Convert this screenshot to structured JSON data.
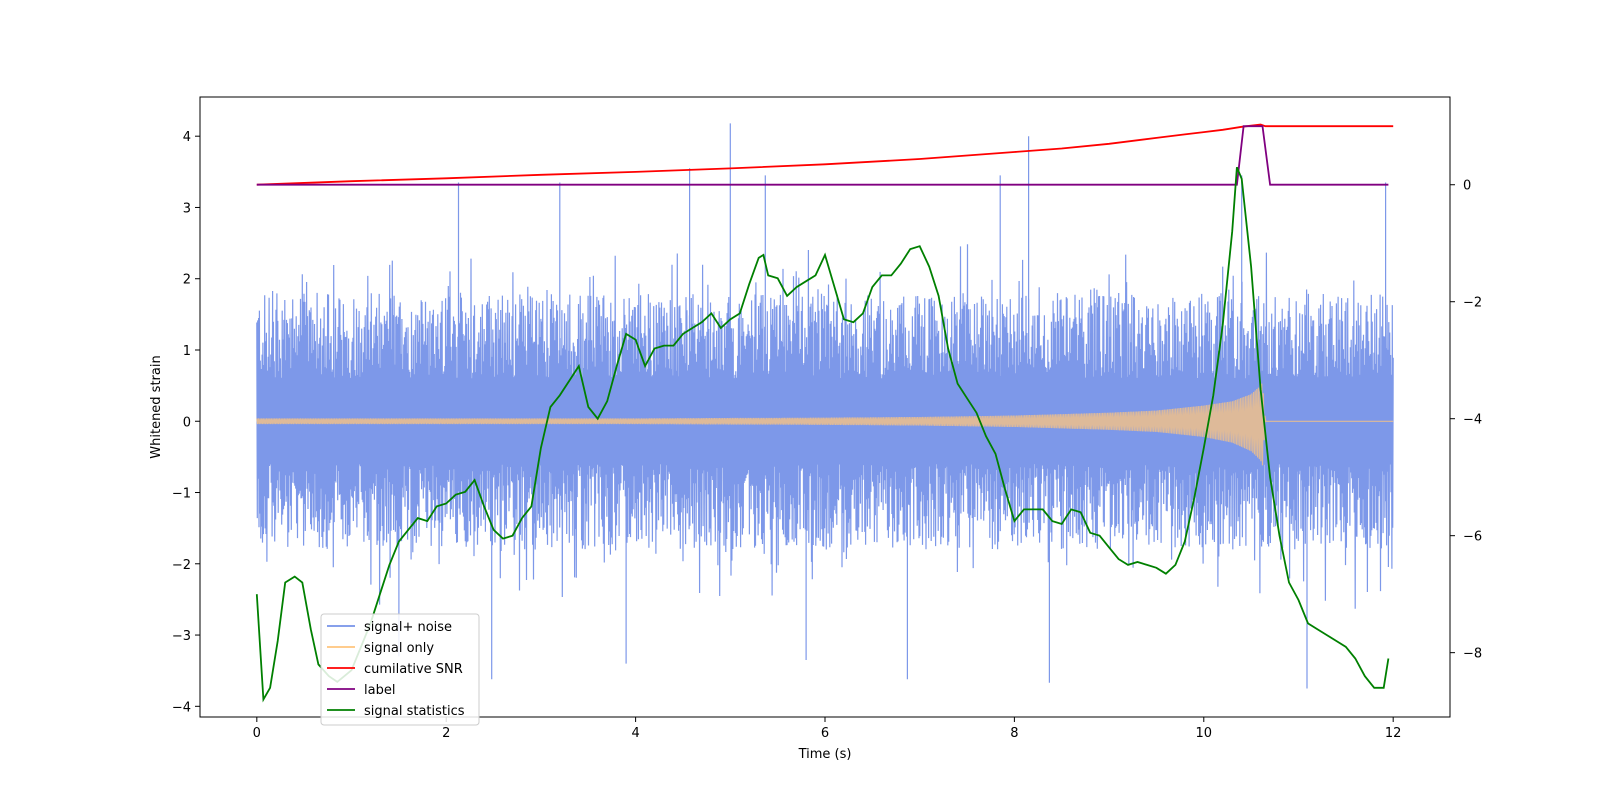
{
  "chart_data": {
    "type": "line",
    "xlabel": "Time (s)",
    "ylabel": "Whitened strain",
    "xlim": [
      -0.6,
      12.6
    ],
    "ylim": [
      -4.15,
      4.55
    ],
    "y2lim": [
      -9.1,
      1.5
    ],
    "xticks": [
      0,
      2,
      4,
      6,
      8,
      10,
      12
    ],
    "xtick_labels": [
      "0",
      "2",
      "4",
      "6",
      "8",
      "10",
      "12"
    ],
    "yticks": [
      -4,
      -3,
      -2,
      -1,
      0,
      1,
      2,
      3,
      4
    ],
    "ytick_labels": [
      "−4",
      "−3",
      "−2",
      "−1",
      "0",
      "1",
      "2",
      "3",
      "4"
    ],
    "y2ticks": [
      -8,
      -6,
      -4,
      -2,
      0
    ],
    "y2tick_labels": [
      "−8",
      "−6",
      "−4",
      "−2",
      "0"
    ],
    "grid": false,
    "legend_position": "lower-left",
    "series": [
      {
        "name": "signal+ noise",
        "axis": "left",
        "color": "#7692e8",
        "kind": "noise-envelope",
        "x_range": [
          0,
          12
        ],
        "upper_typical": 2.0,
        "lower_typical": -2.0,
        "peaks": [
          [
            4.57,
            3.55
          ],
          [
            5.0,
            4.18
          ],
          [
            5.37,
            3.45
          ],
          [
            8.15,
            4.0
          ],
          [
            7.85,
            3.45
          ],
          [
            2.13,
            3.35
          ],
          [
            3.2,
            3.35
          ],
          [
            11.92,
            3.35
          ],
          [
            10.4,
            3.45
          ],
          [
            11.09,
            -3.75
          ],
          [
            2.48,
            -3.62
          ],
          [
            8.37,
            -3.67
          ],
          [
            6.87,
            -3.62
          ],
          [
            3.9,
            -3.4
          ],
          [
            5.8,
            -3.35
          ],
          [
            1.5,
            -3.3
          ]
        ]
      },
      {
        "name": "signal only",
        "axis": "left",
        "color": "#ffc57d",
        "kind": "chirp-envelope",
        "x": [
          0.0,
          2.0,
          4.0,
          6.0,
          7.0,
          8.0,
          9.0,
          9.5,
          10.0,
          10.3,
          10.5,
          10.6,
          10.62,
          10.65,
          10.7,
          12.0
        ],
        "upper": [
          0.04,
          0.04,
          0.04,
          0.05,
          0.06,
          0.08,
          0.12,
          0.15,
          0.22,
          0.28,
          0.38,
          0.5,
          0.55,
          0.0,
          0.0,
          0.0
        ],
        "lower": [
          -0.04,
          -0.04,
          -0.04,
          -0.05,
          -0.06,
          -0.08,
          -0.12,
          -0.15,
          -0.22,
          -0.3,
          -0.42,
          -0.55,
          -0.62,
          0.0,
          0.0,
          0.0
        ]
      },
      {
        "name": "cumilative SNR",
        "axis": "right",
        "color": "#ff0000",
        "x": [
          0.0,
          1.0,
          2.0,
          3.0,
          4.0,
          5.0,
          6.0,
          7.0,
          8.0,
          8.5,
          9.0,
          9.5,
          9.8,
          10.0,
          10.2,
          10.4,
          10.5,
          10.6,
          10.65,
          12.0
        ],
        "y": [
          0.0,
          0.06,
          0.11,
          0.17,
          0.22,
          0.28,
          0.35,
          0.44,
          0.56,
          0.62,
          0.7,
          0.8,
          0.86,
          0.9,
          0.94,
          0.99,
          1.01,
          1.03,
          1.0,
          1.0
        ]
      },
      {
        "name": "label",
        "axis": "right",
        "color": "#800080",
        "x": [
          0.0,
          10.35,
          10.42,
          10.62,
          10.7,
          11.95
        ],
        "y": [
          0.0,
          0.0,
          1.0,
          1.0,
          0.0,
          0.0
        ]
      },
      {
        "name": "signal statistics",
        "axis": "right",
        "color": "#008000",
        "x": [
          0.0,
          0.07,
          0.14,
          0.22,
          0.3,
          0.4,
          0.48,
          0.57,
          0.65,
          0.76,
          0.85,
          1.0,
          1.1,
          1.2,
          1.3,
          1.4,
          1.5,
          1.6,
          1.7,
          1.8,
          1.9,
          2.0,
          2.1,
          2.2,
          2.3,
          2.4,
          2.5,
          2.6,
          2.7,
          2.8,
          2.9,
          3.0,
          3.1,
          3.2,
          3.3,
          3.4,
          3.5,
          3.6,
          3.7,
          3.8,
          3.9,
          4.0,
          4.1,
          4.2,
          4.3,
          4.4,
          4.5,
          4.6,
          4.7,
          4.8,
          4.9,
          5.0,
          5.1,
          5.2,
          5.3,
          5.35,
          5.4,
          5.5,
          5.6,
          5.7,
          5.8,
          5.9,
          6.0,
          6.1,
          6.2,
          6.3,
          6.4,
          6.5,
          6.6,
          6.7,
          6.8,
          6.9,
          7.0,
          7.1,
          7.2,
          7.3,
          7.4,
          7.5,
          7.6,
          7.7,
          7.8,
          7.9,
          8.0,
          8.1,
          8.2,
          8.3,
          8.4,
          8.5,
          8.6,
          8.7,
          8.8,
          8.9,
          9.0,
          9.1,
          9.2,
          9.3,
          9.4,
          9.5,
          9.6,
          9.7,
          9.8,
          9.9,
          10.0,
          10.1,
          10.2,
          10.3,
          10.35,
          10.4,
          10.5,
          10.6,
          10.7,
          10.8,
          10.9,
          11.0,
          11.1,
          11.2,
          11.3,
          11.4,
          11.5,
          11.6,
          11.7,
          11.8,
          11.9,
          11.95
        ],
        "y": [
          -7.0,
          -8.8,
          -8.6,
          -7.8,
          -6.8,
          -6.7,
          -6.8,
          -7.6,
          -8.2,
          -8.4,
          -8.5,
          -8.3,
          -7.9,
          -7.5,
          -7.0,
          -6.5,
          -6.1,
          -5.9,
          -5.7,
          -5.75,
          -5.5,
          -5.45,
          -5.3,
          -5.25,
          -5.05,
          -5.5,
          -5.9,
          -6.05,
          -6.0,
          -5.7,
          -5.5,
          -4.5,
          -3.8,
          -3.6,
          -3.35,
          -3.1,
          -3.8,
          -4.0,
          -3.7,
          -3.1,
          -2.55,
          -2.65,
          -3.1,
          -2.8,
          -2.75,
          -2.75,
          -2.55,
          -2.45,
          -2.35,
          -2.2,
          -2.45,
          -2.3,
          -2.2,
          -1.7,
          -1.25,
          -1.2,
          -1.55,
          -1.6,
          -1.9,
          -1.75,
          -1.65,
          -1.55,
          -1.2,
          -1.75,
          -2.3,
          -2.35,
          -2.2,
          -1.75,
          -1.55,
          -1.55,
          -1.35,
          -1.1,
          -1.05,
          -1.4,
          -1.9,
          -2.8,
          -3.4,
          -3.65,
          -3.9,
          -4.3,
          -4.6,
          -5.2,
          -5.75,
          -5.55,
          -5.55,
          -5.55,
          -5.75,
          -5.8,
          -5.55,
          -5.6,
          -5.95,
          -6.0,
          -6.2,
          -6.4,
          -6.5,
          -6.45,
          -6.5,
          -6.55,
          -6.65,
          -6.5,
          -6.1,
          -5.35,
          -4.5,
          -3.6,
          -2.4,
          -0.8,
          0.3,
          0.1,
          -1.4,
          -3.5,
          -5.0,
          -6.0,
          -6.8,
          -7.1,
          -7.5,
          -7.6,
          -7.7,
          -7.8,
          -7.9,
          -8.1,
          -8.4,
          -8.6,
          -8.6,
          -8.1
        ]
      }
    ]
  }
}
